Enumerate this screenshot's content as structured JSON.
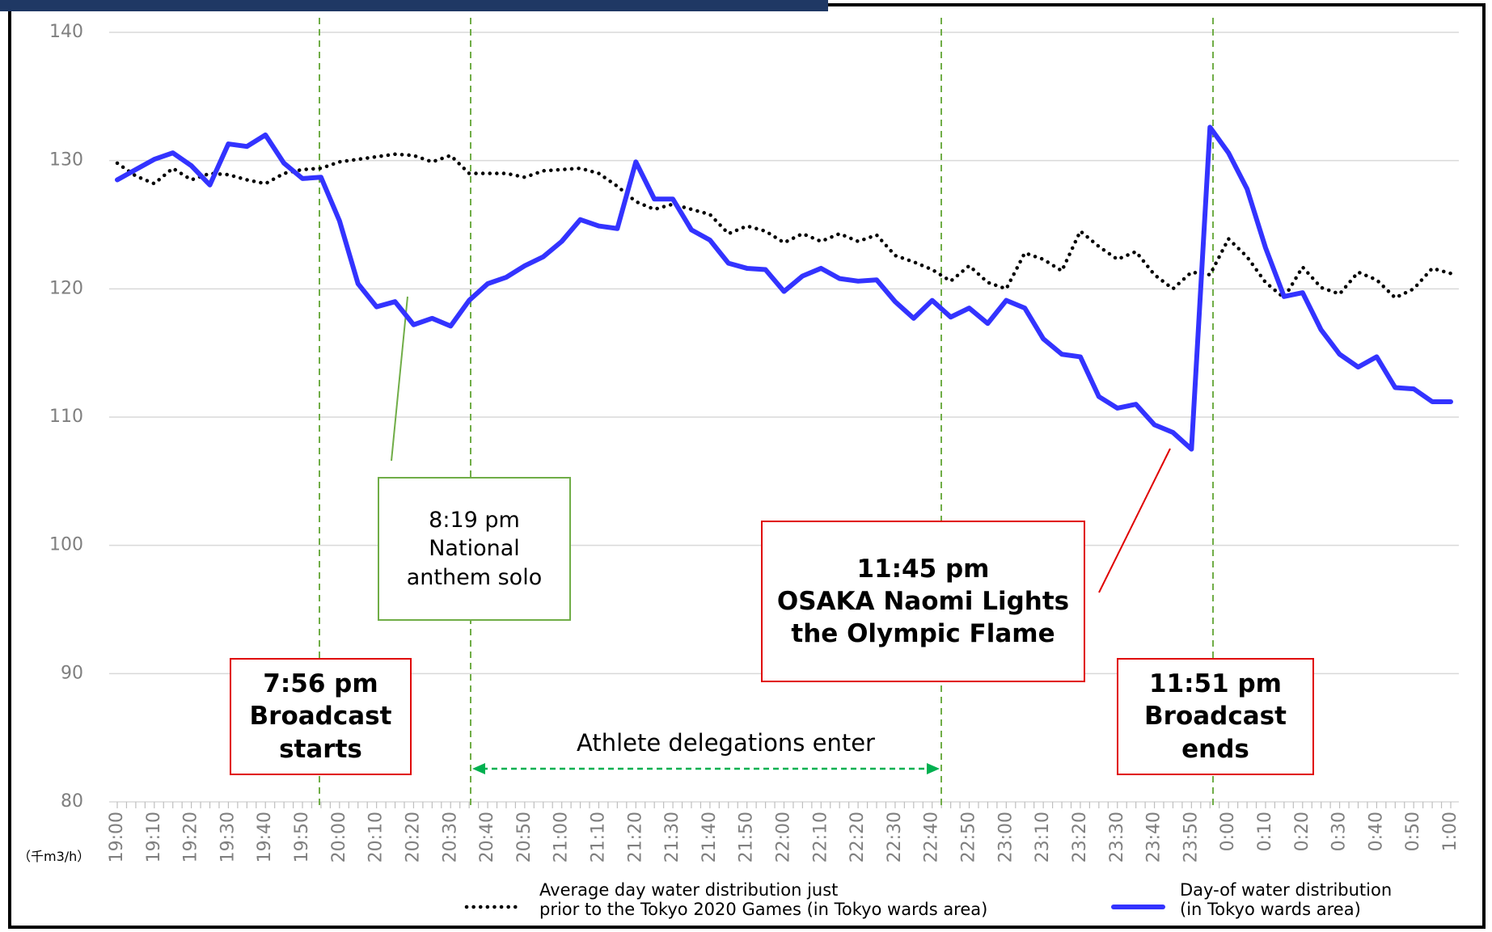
{
  "chart_data": {
    "type": "line",
    "y_unit_label": "（千m3/h）",
    "categories": [
      "19:00",
      null,
      "19:10",
      null,
      "19:20",
      null,
      "19:30",
      null,
      "19:40",
      null,
      "19:50",
      null,
      "20:00",
      null,
      "20:10",
      null,
      "20:20",
      null,
      "20:30",
      null,
      "20:40",
      null,
      "20:50",
      null,
      "21:00",
      null,
      "21:10",
      null,
      "21:20",
      null,
      "21:30",
      null,
      "21:40",
      null,
      "21:50",
      null,
      "22:00",
      null,
      "22:10",
      null,
      "22:20",
      null,
      "22:30",
      null,
      "22:40",
      null,
      "22:50",
      null,
      "23:00",
      null,
      "23:10",
      null,
      "23:20",
      null,
      "23:30",
      null,
      "23:40",
      null,
      "23:50",
      null,
      "0:00",
      null,
      "0:10",
      null,
      "0:20",
      null,
      "0:30",
      null,
      "0:40",
      null,
      "0:50",
      null,
      "1:00"
    ],
    "series": [
      {
        "name": "Average day water distribution just\nprior to the Tokyo 2020 Games (in Tokyo wards area)",
        "color": "#000000",
        "style": "dotted",
        "values": [
          129.8,
          128.8,
          128.2,
          129.4,
          128.5,
          129.0,
          128.9,
          128.5,
          128.2,
          129.0,
          129.3,
          129.4,
          129.9,
          130.1,
          130.3,
          130.5,
          130.4,
          129.9,
          130.4,
          129.0,
          129.0,
          129.0,
          128.7,
          129.2,
          129.3,
          129.4,
          129.0,
          128.0,
          126.8,
          126.2,
          126.6,
          126.2,
          125.8,
          124.3,
          124.9,
          124.5,
          123.6,
          124.3,
          123.7,
          124.3,
          123.7,
          124.2,
          122.6,
          122.1,
          121.5,
          120.6,
          121.8,
          120.5,
          120.0,
          122.8,
          122.3,
          121.4,
          124.5,
          123.3,
          122.3,
          122.9,
          121.1,
          120.0,
          121.3,
          121.1,
          123.9,
          122.5,
          120.5,
          119.3,
          121.7,
          120.1,
          119.6,
          121.3,
          120.7,
          119.3,
          120.0,
          121.6,
          121.2
        ]
      },
      {
        "name": "Day-of water distribution\n (in Tokyo wards area)",
        "color": "#3333ff",
        "style": "solid",
        "values": [
          128.5,
          129.3,
          130.1,
          130.6,
          129.6,
          128.1,
          131.3,
          131.1,
          132.0,
          129.8,
          128.6,
          128.7,
          125.3,
          120.4,
          118.6,
          119.0,
          117.2,
          117.7,
          117.1,
          119.1,
          120.4,
          120.9,
          121.8,
          122.5,
          123.7,
          125.4,
          124.9,
          124.7,
          129.9,
          127.0,
          127.0,
          124.6,
          123.8,
          122.0,
          121.6,
          121.5,
          119.8,
          121.0,
          121.6,
          120.8,
          120.6,
          120.7,
          119.0,
          117.7,
          119.1,
          117.8,
          118.5,
          117.3,
          119.1,
          118.5,
          116.1,
          114.9,
          114.7,
          111.6,
          110.7,
          111.0,
          109.4,
          108.8,
          107.5,
          132.6,
          130.6,
          127.8,
          123.2,
          119.4,
          119.7,
          116.8,
          114.9,
          113.9,
          114.7,
          112.3,
          112.2,
          111.2,
          111.2
        ]
      }
    ],
    "ylim": [
      80,
      140
    ],
    "yticks": [
      80,
      90,
      100,
      110,
      120,
      130,
      140
    ],
    "grid": true,
    "annotations": [
      {
        "text": "8:19 pm\nNational\nanthem solo"
      },
      {
        "text": "7:56 pm\nBroadcast\nstarts"
      },
      {
        "text": "11:45 pm\nOSAKA Naomi Lights\nthe Olympic Flame"
      },
      {
        "text": "11:51 pm\nBroadcast\nends"
      },
      {
        "text": "Athlete delegations enter"
      }
    ]
  }
}
